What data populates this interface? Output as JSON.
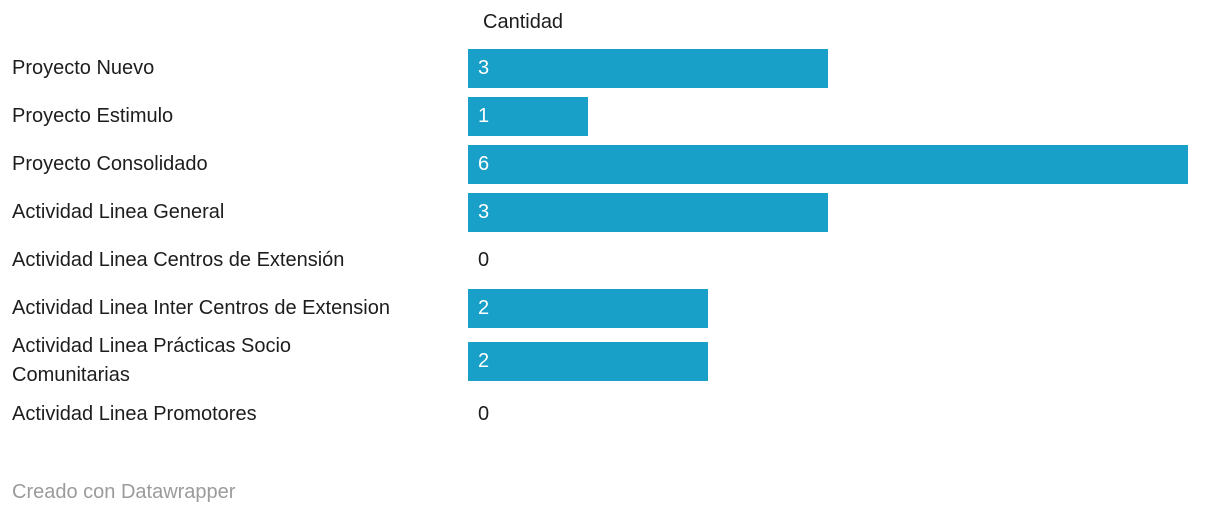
{
  "chart_data": {
    "type": "bar",
    "orientation": "horizontal",
    "value_column_header": "Cantidad",
    "categories": [
      "Proyecto Nuevo",
      "Proyecto Estimulo",
      "Proyecto Consolidado",
      "Actividad Linea General",
      "Actividad Linea Centros de Extensión",
      "Actividad Linea Inter Centros de Extension",
      "Actividad Linea Prácticas Socio\nComunitarias",
      "Actividad Linea Promotores"
    ],
    "values": [
      3,
      1,
      6,
      3,
      0,
      2,
      2,
      0
    ],
    "xlim": [
      0,
      6
    ],
    "bar_color": "#18a0c8",
    "bar_value_text_color": "#ffffff",
    "zero_value_text_color": "#1d1d1d",
    "grid": false,
    "legend": "none"
  },
  "footer": {
    "credit": "Creado con Datawrapper"
  }
}
